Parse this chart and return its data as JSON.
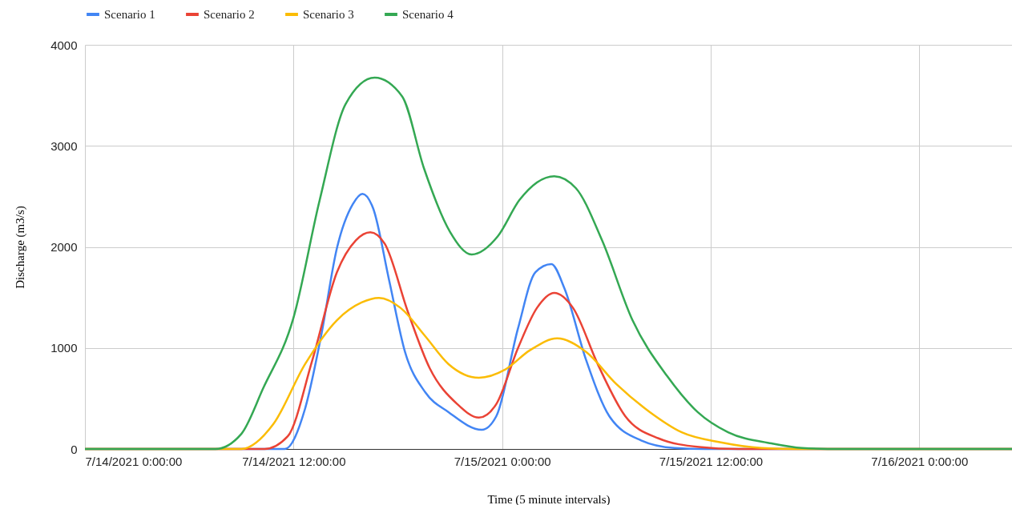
{
  "chart_data": {
    "type": "line",
    "xlabel": "Time (5 minute intervals)",
    "ylabel": "Discharge (m3/s)",
    "xlim": [
      "2021-07-14T00:00",
      "2021-07-16T05:20"
    ],
    "xticks": [
      {
        "value": "2021-07-14T00:00",
        "label": "7/14/2021 0:00:00"
      },
      {
        "value": "2021-07-14T12:00",
        "label": "7/14/2021 12:00:00"
      },
      {
        "value": "2021-07-15T00:00",
        "label": "7/15/2021 0:00:00"
      },
      {
        "value": "2021-07-15T12:00",
        "label": "7/15/2021 12:00:00"
      },
      {
        "value": "2021-07-16T00:00",
        "label": "7/16/2021 0:00:00"
      }
    ],
    "ylim": [
      0,
      4000
    ],
    "yticks": [
      0,
      1000,
      2000,
      3000,
      4000
    ],
    "grid": true,
    "legend": "top",
    "marker": "none",
    "line_style": "solid",
    "series": [
      {
        "name": "Scenario 1",
        "color": "#4285f4",
        "x": [
          "2021-07-14T00:00",
          "2021-07-14T11:30",
          "2021-07-14T12:40",
          "2021-07-14T13:35",
          "2021-07-14T14:30",
          "2021-07-14T15:25",
          "2021-07-14T15:58",
          "2021-07-14T16:35",
          "2021-07-14T17:30",
          "2021-07-14T18:25",
          "2021-07-14T19:35",
          "2021-07-14T20:55",
          "2021-07-14T22:50",
          "2021-07-14T23:40",
          "2021-07-15T00:55",
          "2021-07-15T01:55",
          "2021-07-15T02:50",
          "2021-07-15T03:35",
          "2021-07-15T04:50",
          "2021-07-15T06:10",
          "2021-07-15T08:00",
          "2021-07-15T09:55",
          "2021-07-15T11:40",
          "2021-07-16T05:20"
        ],
        "values": [
          0,
          0,
          400,
          1115,
          1990,
          2425,
          2525,
          2380,
          1670,
          960,
          560,
          365,
          190,
          325,
          1195,
          1750,
          1830,
          1590,
          880,
          325,
          85,
          10,
          0,
          0
        ]
      },
      {
        "name": "Scenario 2",
        "color": "#ea4335",
        "x": [
          "2021-07-14T00:00",
          "2021-07-14T10:20",
          "2021-07-14T11:40",
          "2021-07-14T13:05",
          "2021-07-14T14:30",
          "2021-07-14T15:35",
          "2021-07-14T16:25",
          "2021-07-14T17:15",
          "2021-07-14T18:35",
          "2021-07-14T19:50",
          "2021-07-14T21:25",
          "2021-07-14T22:40",
          "2021-07-14T23:40",
          "2021-07-15T00:55",
          "2021-07-15T02:00",
          "2021-07-15T03:00",
          "2021-07-15T04:05",
          "2021-07-15T05:30",
          "2021-07-15T07:05",
          "2021-07-15T09:00",
          "2021-07-15T11:20",
          "2021-07-15T13:35",
          "2021-07-16T05:20"
        ],
        "values": [
          0,
          0,
          125,
          880,
          1750,
          2065,
          2145,
          2030,
          1355,
          800,
          445,
          310,
          445,
          1000,
          1395,
          1545,
          1395,
          840,
          325,
          105,
          20,
          0,
          0
        ]
      },
      {
        "name": "Scenario 3",
        "color": "#fbbc04",
        "x": [
          "2021-07-14T00:00",
          "2021-07-14T09:00",
          "2021-07-14T10:50",
          "2021-07-14T12:40",
          "2021-07-14T14:30",
          "2021-07-14T15:55",
          "2021-07-14T16:55",
          "2021-07-14T18:10",
          "2021-07-14T19:35",
          "2021-07-14T20:55",
          "2021-07-14T22:40",
          "2021-07-15T00:10",
          "2021-07-15T01:35",
          "2021-07-15T03:10",
          "2021-07-15T04:50",
          "2021-07-15T06:35",
          "2021-07-15T08:30",
          "2021-07-15T10:20",
          "2021-07-15T12:35",
          "2021-07-15T14:55",
          "2021-07-15T17:00",
          "2021-07-16T05:20"
        ],
        "values": [
          0,
          0,
          245,
          840,
          1275,
          1450,
          1495,
          1395,
          1115,
          840,
          705,
          785,
          975,
          1095,
          960,
          640,
          365,
          165,
          65,
          10,
          0,
          0
        ]
      },
      {
        "name": "Scenario 4",
        "color": "#34a853",
        "x": [
          "2021-07-14T00:00",
          "2021-07-14T07:30",
          "2021-07-14T09:00",
          "2021-07-14T10:15",
          "2021-07-14T12:00",
          "2021-07-14T13:30",
          "2021-07-14T15:00",
          "2021-07-14T16:40",
          "2021-07-14T18:15",
          "2021-07-14T19:30",
          "2021-07-14T21:00",
          "2021-07-14T22:15",
          "2021-07-14T23:45",
          "2021-07-15T01:00",
          "2021-07-15T03:00",
          "2021-07-15T04:15",
          "2021-07-15T05:45",
          "2021-07-15T07:30",
          "2021-07-15T09:30",
          "2021-07-15T11:15",
          "2021-07-15T13:00",
          "2021-07-15T15:30",
          "2021-07-15T17:15",
          "2021-07-15T19:30",
          "2021-07-16T05:20"
        ],
        "values": [
          0,
          0,
          150,
          600,
          1300,
          2460,
          3415,
          3675,
          3490,
          2780,
          2150,
          1925,
          2105,
          2465,
          2700,
          2580,
          2065,
          1275,
          720,
          365,
          165,
          55,
          10,
          0,
          0
        ]
      }
    ]
  }
}
